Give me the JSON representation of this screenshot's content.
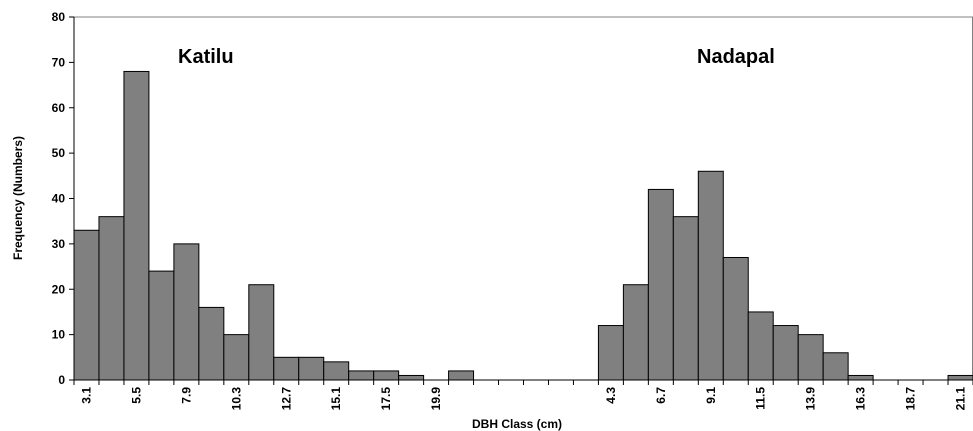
{
  "chart_data": {
    "type": "bar",
    "title": "",
    "xlabel": "DBH Class (cm)",
    "ylabel": "Frequency (Numbers)",
    "ylim": [
      0,
      80
    ],
    "yticks": [
      0,
      10,
      20,
      30,
      40,
      50,
      60,
      70,
      80
    ],
    "grid": false,
    "legend": "none",
    "bar_color": "#808080",
    "bar_edge_color": "#000000",
    "annotations": [
      "Katilu",
      "Nadapal"
    ],
    "categories": [
      "3.1",
      "4.3",
      "5.5",
      "6.7",
      "7.9",
      "9.1",
      "10.3",
      "11.5",
      "12.7",
      "13.9",
      "15.1",
      "16.3",
      "17.5",
      "18.7",
      "19.9",
      "21.1",
      "",
      "",
      "",
      "",
      "",
      "4.3",
      "5.5",
      "6.7",
      "7.9",
      "9.1",
      "10.3",
      "11.5",
      "12.7",
      "13.9",
      "15.1",
      "16.3",
      "17.5",
      "18.7",
      "19.9",
      "21.1"
    ],
    "tick_labels": [
      "3.1",
      "",
      "5.5",
      "",
      "7.9",
      "",
      "10.3",
      "",
      "12.7",
      "",
      "15.1",
      "",
      "17.5",
      "",
      "19.9",
      "",
      "",
      "",
      "",
      "",
      "",
      "4.3",
      "",
      "6.7",
      "",
      "9.1",
      "",
      "11.5",
      "",
      "13.9",
      "",
      "16.3",
      "",
      "18.7",
      "",
      "21.1"
    ],
    "values": [
      33,
      36,
      68,
      24,
      30,
      16,
      10,
      21,
      5,
      5,
      4,
      2,
      2,
      1,
      0,
      2,
      0,
      0,
      0,
      0,
      0,
      12,
      21,
      42,
      36,
      46,
      27,
      15,
      12,
      10,
      6,
      1,
      0,
      0,
      0,
      1
    ]
  }
}
